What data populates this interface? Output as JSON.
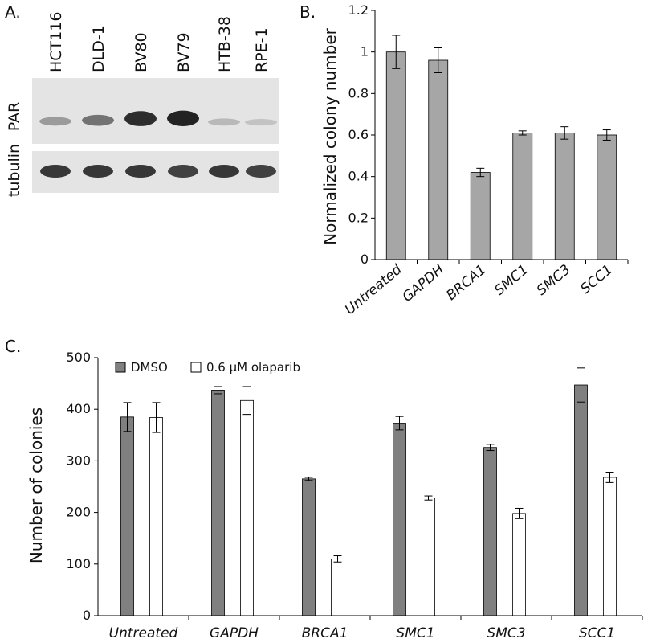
{
  "panels": {
    "a_letter": "A.",
    "b_letter": "B.",
    "c_letter": "C."
  },
  "blot": {
    "lanes": [
      "HCT116",
      "DLD-1",
      "BV80",
      "BV79",
      "HTB-38",
      "RPE-1"
    ],
    "rows": [
      "PAR",
      "tubulin"
    ],
    "par_intensity": [
      0.35,
      0.55,
      0.9,
      0.95,
      0.2,
      0.15
    ],
    "tubulin_intensity": [
      0.85,
      0.85,
      0.85,
      0.8,
      0.85,
      0.8
    ]
  },
  "chart_data": [
    {
      "type": "bar",
      "ylabel": "Normalized colony number",
      "categories": [
        "Untreated",
        "GAPDH",
        "BRCA1",
        "SMC1",
        "SMC3",
        "SCC1"
      ],
      "values": [
        1.0,
        0.96,
        0.42,
        0.61,
        0.61,
        0.6
      ],
      "errors": [
        0.08,
        0.06,
        0.02,
        0.01,
        0.03,
        0.025
      ],
      "ylim": [
        0,
        1.2
      ],
      "yticks": [
        "0",
        "0.2",
        "0.4",
        "0.6",
        "0.8",
        "1",
        "1.2"
      ],
      "bar_color": "#a6a6a6"
    },
    {
      "type": "bar",
      "ylabel": "Number of colonies",
      "categories": [
        "Untreated",
        "GAPDH",
        "BRCA1",
        "SMC1",
        "SMC3",
        "SCC1"
      ],
      "series": [
        {
          "name": "DMSO",
          "values": [
            385,
            437,
            265,
            373,
            326,
            447
          ],
          "errors": [
            28,
            7,
            3,
            13,
            6,
            33
          ],
          "color": "#808080"
        },
        {
          "name": "0.6 μM olaparib",
          "values": [
            384,
            417,
            110,
            228,
            198,
            268
          ],
          "errors": [
            29,
            27,
            6,
            4,
            10,
            10
          ],
          "color": "#ffffff"
        }
      ],
      "ylim": [
        0,
        500
      ],
      "yticks": [
        "0",
        "100",
        "200",
        "300",
        "400",
        "500"
      ],
      "legend": "top-left"
    }
  ]
}
